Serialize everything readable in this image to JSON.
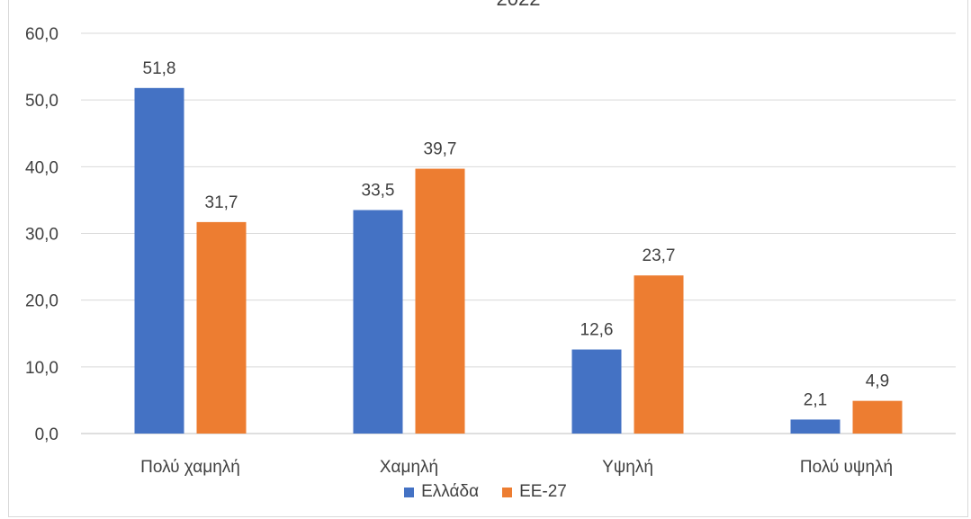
{
  "chart_data": {
    "type": "bar",
    "title": "2022",
    "categories": [
      "Πολύ χαμηλή",
      "Χαμηλή",
      "Υψηλή",
      "Πολύ υψηλή"
    ],
    "series": [
      {
        "name": "Ελλάδα",
        "values": [
          51.8,
          33.5,
          12.6,
          2.1
        ],
        "labels": [
          "51,8",
          "33,5",
          "12,6",
          "2,1"
        ],
        "color": "#4472C4"
      },
      {
        "name": "ΕΕ-27",
        "values": [
          31.7,
          39.7,
          23.7,
          4.9
        ],
        "labels": [
          "31,7",
          "39,7",
          "23,7",
          "4,9"
        ],
        "color": "#ED7D31"
      }
    ],
    "ylim": [
      0,
      60
    ],
    "yticks": [
      "0,0",
      "10,0",
      "20,0",
      "30,0",
      "40,0",
      "50,0",
      "60,0"
    ],
    "grid": true,
    "legend_position": "bottom"
  }
}
